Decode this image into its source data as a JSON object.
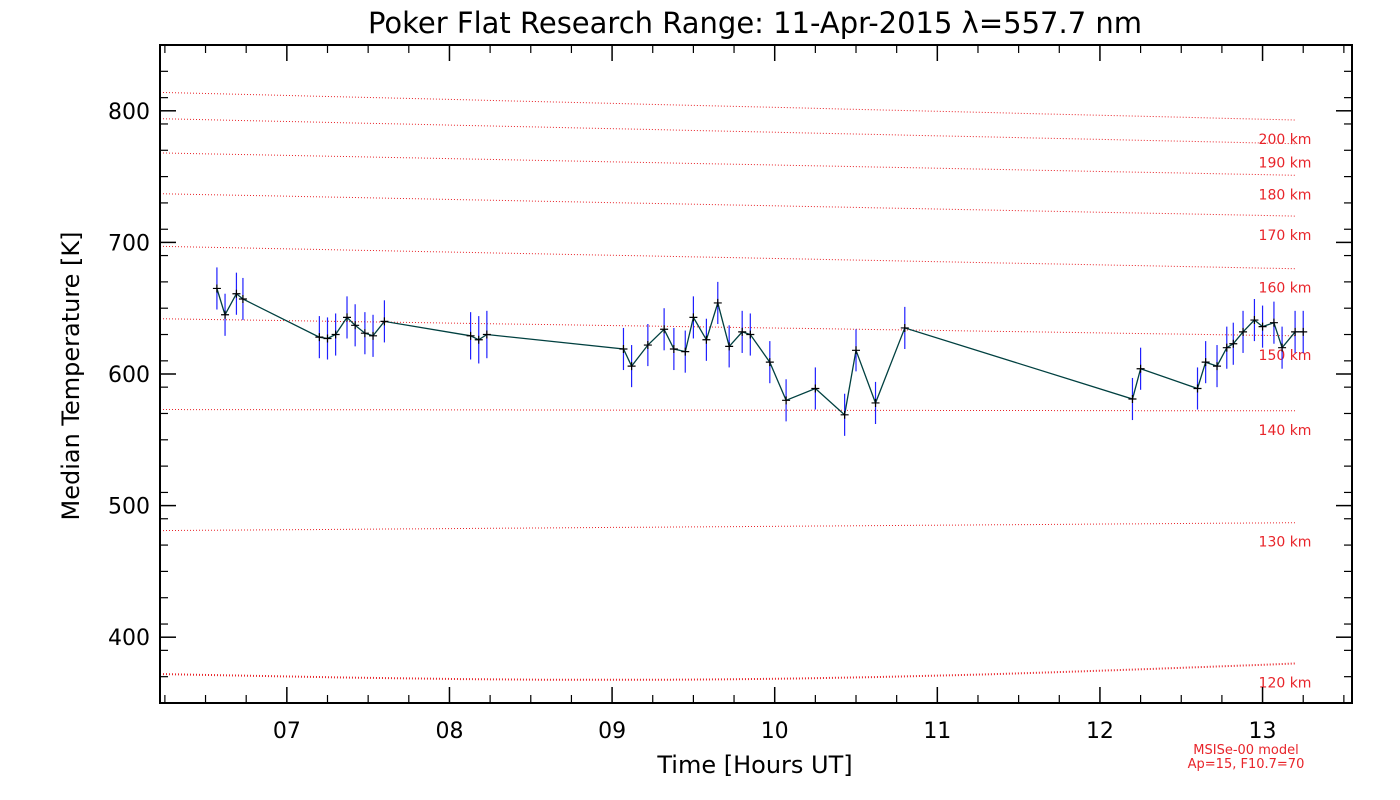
{
  "chart_data": {
    "type": "line",
    "title": "Poker Flat Research Range: 11-Apr-2015 λ=557.7 nm",
    "xlabel": "Time [Hours UT]",
    "ylabel": "Median Temperature [K]",
    "xlim": [
      6.22,
      13.55
    ],
    "ylim": [
      350,
      850
    ],
    "xticks": [
      "07",
      "08",
      "09",
      "10",
      "11",
      "12",
      "13"
    ],
    "yticks": [
      "400",
      "500",
      "600",
      "700",
      "800"
    ],
    "grid": false,
    "line_color": "#004040",
    "errorbar_color": "#2020ff",
    "series": [
      {
        "x": [
          6.57,
          6.62,
          6.69,
          6.73,
          7.2,
          7.25,
          7.3,
          7.37,
          7.42,
          7.48,
          7.53,
          7.6,
          8.13,
          8.18,
          8.23,
          9.07,
          9.12,
          9.22,
          9.32,
          9.38,
          9.45,
          9.5,
          9.58,
          9.65,
          9.72,
          9.8,
          9.85,
          9.97,
          10.07,
          10.25,
          10.43,
          10.5,
          10.62,
          10.8,
          12.2,
          12.25,
          12.6,
          12.65,
          12.72,
          12.78,
          12.82,
          12.88,
          12.95,
          13.0,
          13.07,
          13.12,
          13.2,
          13.25
        ],
        "y": [
          665,
          645,
          661,
          657,
          628,
          627,
          630,
          643,
          637,
          631,
          629,
          640,
          629,
          626,
          630,
          619,
          606,
          622,
          634,
          619,
          617,
          643,
          626,
          654,
          621,
          632,
          630,
          609,
          580,
          589,
          569,
          618,
          578,
          635,
          581,
          604,
          589,
          609,
          606,
          620,
          623,
          632,
          641,
          636,
          639,
          620,
          632,
          632
        ],
        "err": [
          16,
          16,
          16,
          16,
          16,
          16,
          16,
          16,
          16,
          16,
          16,
          16,
          18,
          18,
          18,
          16,
          16,
          16,
          16,
          16,
          16,
          16,
          16,
          16,
          16,
          16,
          16,
          16,
          16,
          16,
          16,
          16,
          16,
          16,
          16,
          16,
          16,
          16,
          16,
          16,
          16,
          16,
          16,
          16,
          16,
          16,
          16,
          16
        ]
      }
    ],
    "model_lines": [
      {
        "label": "120 km",
        "y0": 372,
        "y1": 380
      },
      {
        "label": "130 km",
        "y0": 481,
        "y1": 487
      },
      {
        "label": "140 km",
        "y0": 573,
        "y1": 572
      },
      {
        "label": "150 km",
        "y0": 642,
        "y1": 629
      },
      {
        "label": "160 km",
        "y0": 697,
        "y1": 680
      },
      {
        "label": "170 km",
        "y0": 737,
        "y1": 720
      },
      {
        "label": "180 km",
        "y0": 768,
        "y1": 751
      },
      {
        "label": "190 km",
        "y0": 794,
        "y1": 775
      },
      {
        "label": "200 km",
        "y0": 814,
        "y1": 793
      }
    ],
    "model_color": "#e8242a"
  },
  "annotations": {
    "model": "MSISe-00 model",
    "params": "Ap=15, F10.7=70"
  }
}
